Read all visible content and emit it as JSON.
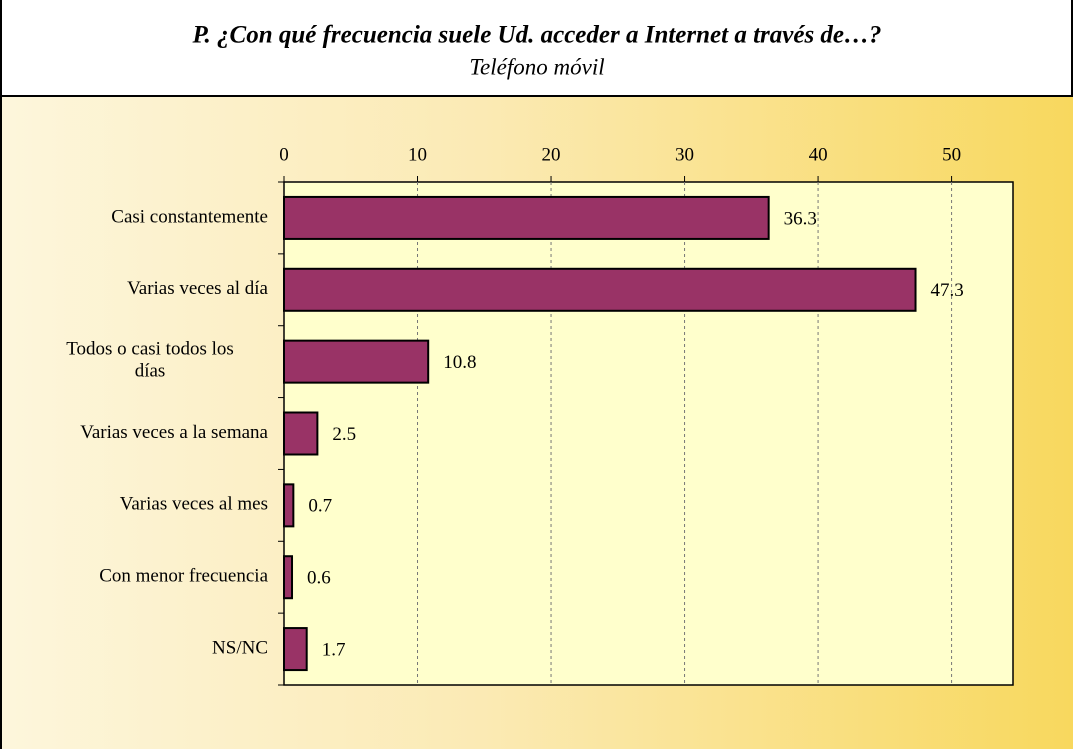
{
  "chart_data": {
    "type": "bar",
    "orientation": "horizontal",
    "title": "P. ¿Con qué frecuencia suele Ud. acceder a Internet a través de…?",
    "subtitle": "Teléfono móvil",
    "categories": [
      "Casi constantemente",
      "Varias veces al día",
      "Todos o casi todos los días",
      "Varias veces a la semana",
      "Varias veces al mes",
      "Con menor frecuencia",
      "NS/NC"
    ],
    "values": [
      36.3,
      47.3,
      10.8,
      2.5,
      0.7,
      0.6,
      1.7
    ],
    "color": "#993366",
    "xlim": [
      0,
      54.6
    ],
    "xticks": [
      0,
      10,
      20,
      30,
      40,
      50
    ],
    "grid": true
  }
}
